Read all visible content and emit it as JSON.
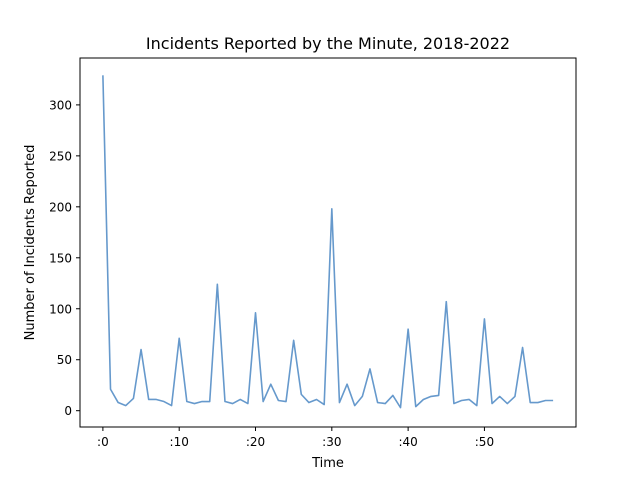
{
  "chart_data": {
    "type": "line",
    "title": "Incidents Reported by the Minute, 2018-2022",
    "xlabel": "Time",
    "ylabel": "Number of Incidents Reported",
    "xlim": [
      -3,
      62
    ],
    "ylim": [
      -16,
      346
    ],
    "grid": false,
    "legend": "none",
    "x_ticks": [
      {
        "value": 0,
        "label": ":0"
      },
      {
        "value": 10,
        "label": ":10"
      },
      {
        "value": 20,
        "label": ":20"
      },
      {
        "value": 30,
        "label": ":30"
      },
      {
        "value": 40,
        "label": ":40"
      },
      {
        "value": 50,
        "label": ":50"
      }
    ],
    "y_ticks": [
      {
        "value": 0,
        "label": "0"
      },
      {
        "value": 50,
        "label": "50"
      },
      {
        "value": 100,
        "label": "100"
      },
      {
        "value": 150,
        "label": "150"
      },
      {
        "value": 200,
        "label": "200"
      },
      {
        "value": 250,
        "label": "250"
      },
      {
        "value": 300,
        "label": "300"
      }
    ],
    "x": [
      0,
      1,
      2,
      3,
      4,
      5,
      6,
      7,
      8,
      9,
      10,
      11,
      12,
      13,
      14,
      15,
      16,
      17,
      18,
      19,
      20,
      21,
      22,
      23,
      24,
      25,
      26,
      27,
      28,
      29,
      30,
      31,
      32,
      33,
      34,
      35,
      36,
      37,
      38,
      39,
      40,
      41,
      42,
      43,
      44,
      45,
      46,
      47,
      48,
      49,
      50,
      51,
      52,
      53,
      54,
      55,
      56,
      57,
      58,
      59
    ],
    "series": [
      {
        "color": "#6699cc",
        "values": [
          329,
          21,
          8,
          5,
          12,
          60,
          11,
          11,
          9,
          5,
          71,
          9,
          7,
          9,
          9,
          124,
          9,
          7,
          11,
          7,
          96,
          9,
          26,
          10,
          9,
          69,
          16,
          8,
          11,
          6,
          198,
          8,
          26,
          5,
          14,
          41,
          8,
          7,
          15,
          3,
          80,
          4,
          11,
          14,
          15,
          107,
          7,
          10,
          11,
          5,
          90,
          7,
          14,
          7,
          14,
          62,
          8,
          8,
          10,
          10
        ]
      }
    ]
  }
}
